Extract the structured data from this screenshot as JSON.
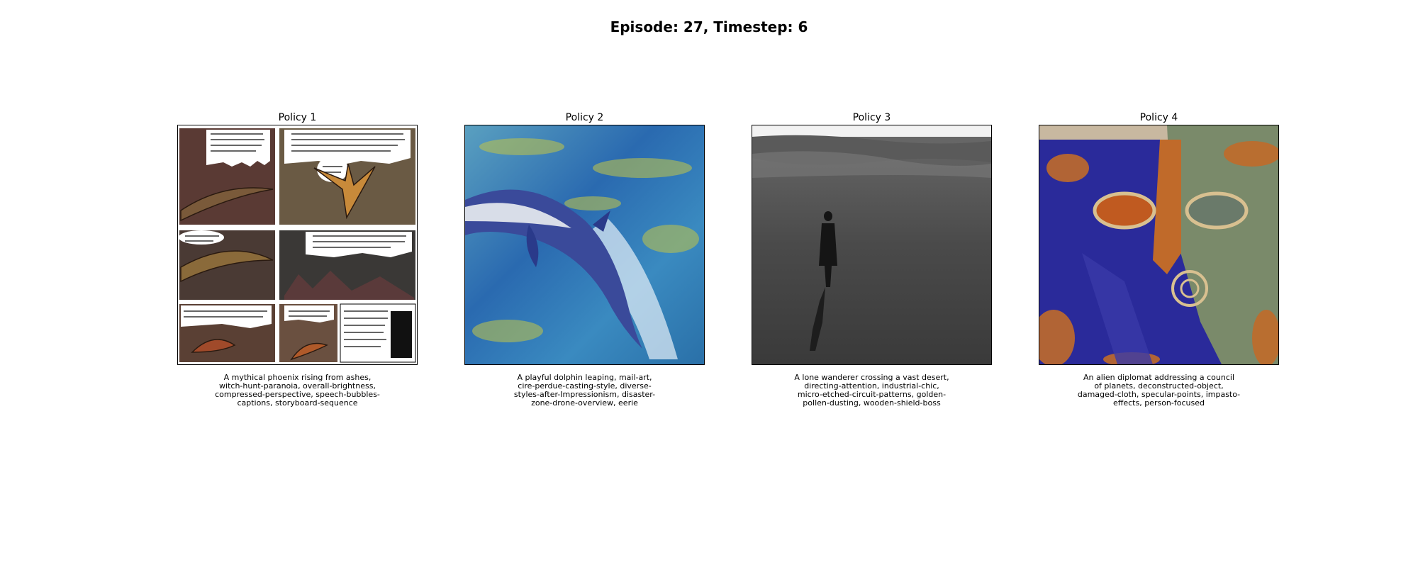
{
  "figure": {
    "title": "Episode: 27, Timestep: 6"
  },
  "panels": [
    {
      "title": "Policy 1",
      "caption": "A mythical phoenix rising from ashes,\nwitch-hunt-paranoia, overall-brightness,\ncompressed-perspective, speech-bubbles-\ncaptions, storyboard-sequence"
    },
    {
      "title": "Policy 2",
      "caption": "A playful dolphin leaping, mail-art,\ncire-perdue-casting-style, diverse-\nstyles-after-Impressionism, disaster-\nzone-drone-overview, eerie"
    },
    {
      "title": "Policy 3",
      "caption": "A lone wanderer crossing a vast desert,\ndirecting-attention, industrial-chic,\nmicro-etched-circuit-patterns, golden-\npollen-dusting, wooden-shield-boss"
    },
    {
      "title": "Policy 4",
      "caption": "An alien diplomat addressing a council\nof planets, deconstructed-object,\ndamaged-cloth, specular-points, impasto-\neffects, person-focused"
    }
  ]
}
